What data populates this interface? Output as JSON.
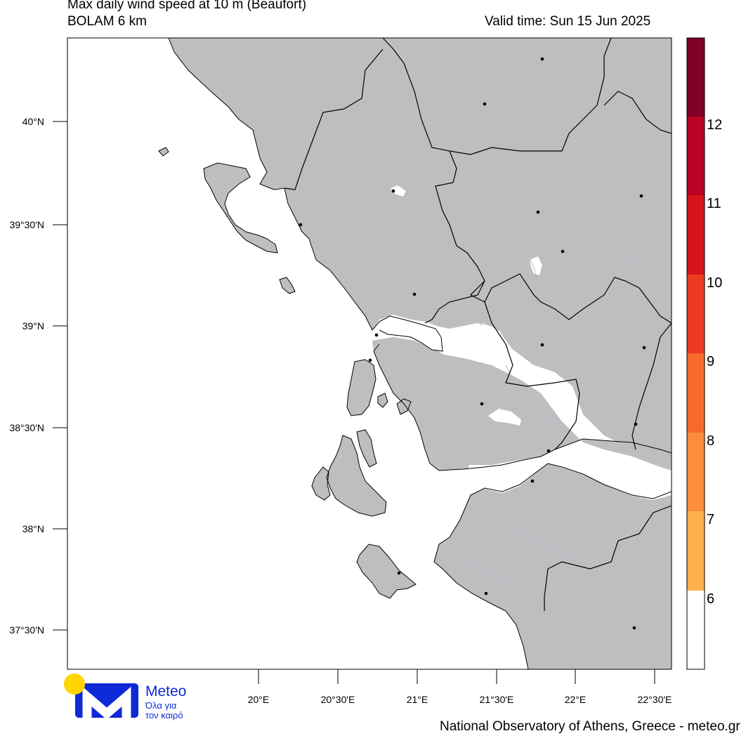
{
  "header": {
    "title": "Max daily wind speed at 10 m (Beaufort)",
    "model": "BOLAM 6 km",
    "valid_time": "Valid time: Sun 15 Jun 2025"
  },
  "map": {
    "lat_labels": [
      "40°N",
      "39°30'N",
      "39°N",
      "38°30'N",
      "38°N",
      "37°30'N"
    ],
    "lon_labels": [
      "20°E",
      "20°30'E",
      "21°E",
      "21°30'E",
      "22°E",
      "22°30'E"
    ],
    "extent": {
      "lon_min": 19.4,
      "lon_max": 22.6,
      "lat_min": 37.33,
      "lat_max": 40.4
    },
    "colors": {
      "land": "#bebebe",
      "sea": "#ffffff",
      "border": "#000000",
      "rivers": "#a9bedc"
    }
  },
  "colorbar": {
    "labels": [
      "6",
      "7",
      "8",
      "9",
      "10",
      "11",
      "12"
    ],
    "bins": [
      {
        "level": "6",
        "color": "#ffffff"
      },
      {
        "level": "7",
        "color": "#fdb04b"
      },
      {
        "level": "8",
        "color": "#fd8c3c"
      },
      {
        "level": "9",
        "color": "#f76a2c"
      },
      {
        "level": "10",
        "color": "#ec3b21"
      },
      {
        "level": "11",
        "color": "#d6141c"
      },
      {
        "level": "12",
        "color": "#bb0026"
      },
      {
        "level": "13",
        "color": "#800026"
      }
    ]
  },
  "logo": {
    "name": "Meteo",
    "tagline_1": "Όλα για",
    "tagline_2": "τον καιρό",
    "colors": {
      "sun": "#ffd400",
      "mark": "#0d2ad6"
    }
  },
  "footer": {
    "credit": "National Observatory of Athens, Greece - meteo.gr"
  }
}
